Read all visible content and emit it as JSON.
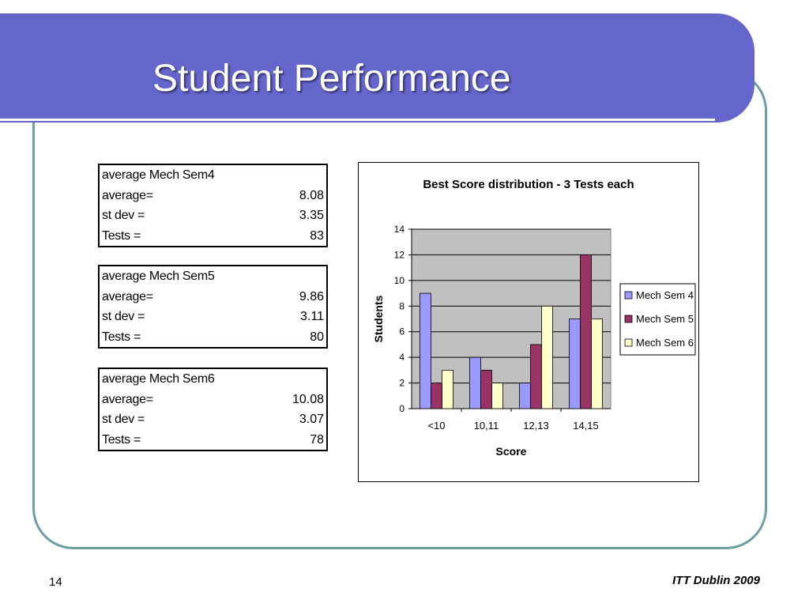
{
  "slide": {
    "title": "Student Performance",
    "page_number": "14",
    "footer": "ITT Dublin 2009"
  },
  "stats": [
    {
      "heading": "average Mech Sem4",
      "rows": [
        {
          "label": "average=",
          "value": "8.08"
        },
        {
          "label": "st dev =",
          "value": "3.35"
        },
        {
          "label": "Tests =",
          "value": "83"
        }
      ]
    },
    {
      "heading": "average Mech Sem5",
      "rows": [
        {
          "label": "average=",
          "value": "9.86"
        },
        {
          "label": "st dev =",
          "value": "3.11"
        },
        {
          "label": "Tests =",
          "value": "80"
        }
      ]
    },
    {
      "heading": "average Mech Sem6",
      "rows": [
        {
          "label": "average=",
          "value": "10.08"
        },
        {
          "label": "st dev =",
          "value": "3.07"
        },
        {
          "label": "Tests =",
          "value": "78"
        }
      ]
    }
  ],
  "chart_data": {
    "type": "bar",
    "title": "Best Score distribution - 3 Tests each",
    "xlabel": "Score",
    "ylabel": "Students",
    "categories": [
      "<10",
      "10,11",
      "12,13",
      "14,15"
    ],
    "series": [
      {
        "name": "Mech Sem 4",
        "values": [
          9,
          4,
          2,
          7
        ],
        "color": "#9999ff"
      },
      {
        "name": "Mech Sem 5",
        "values": [
          2,
          3,
          5,
          12
        ],
        "color": "#993366"
      },
      {
        "name": "Mech Sem 6",
        "values": [
          3,
          2,
          8,
          7
        ],
        "color": "#ffffcc"
      }
    ],
    "ylim": [
      0,
      14
    ],
    "yticks": [
      0,
      2,
      4,
      6,
      8,
      10,
      12,
      14
    ],
    "grid": true,
    "plot_background": "#c0c0c0",
    "legend": "right"
  }
}
